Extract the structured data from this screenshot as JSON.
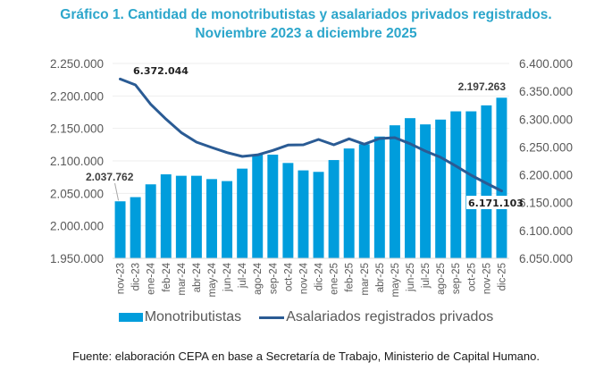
{
  "title": {
    "line1": "Gráfico 1. Cantidad de monotributistas y asalariados privados registrados.",
    "line2": "Noviembre 2023 a diciembre 2025"
  },
  "colors": {
    "title": "#2ca6cb",
    "bars": "#009ddc",
    "line": "#2a5b94",
    "grid": "#eeeeee"
  },
  "legend": {
    "bars_label": "Monotributistas",
    "line_label": "Asalariados registrados privados"
  },
  "source": "Fuente: elaboración CEPA en base a Secretaría de Trabajo, Ministerio de Capital Humano.",
  "chart_data": {
    "type": "bar+line",
    "title": "Gráfico 1. Cantidad de monotributistas y asalariados privados registrados. Noviembre 2023 a diciembre 2025",
    "xlabel": "",
    "ylabel_left": "",
    "ylabel_right": "",
    "categories": [
      "nov-23",
      "dic-23",
      "ene-24",
      "feb-24",
      "mar-24",
      "abr-24",
      "may-24",
      "jun-24",
      "jul-24",
      "ago-24",
      "sep-24",
      "oct-24",
      "nov-24",
      "dic-24",
      "ene-25",
      "feb-25",
      "mar-25",
      "abr-25",
      "may-25",
      "jun-25",
      "jul-25",
      "ago-25",
      "sep-25",
      "oct-25",
      "nov-25",
      "dic-25"
    ],
    "series": [
      {
        "name": "Monotributistas",
        "type": "bar",
        "axis": "left",
        "values": [
          2037762,
          2044200,
          2063900,
          2079300,
          2077100,
          2077100,
          2072000,
          2068900,
          2088100,
          2110000,
          2109600,
          2096800,
          2085400,
          2083100,
          2101300,
          2119100,
          2125600,
          2137500,
          2154800,
          2165800,
          2156200,
          2163600,
          2176300,
          2176300,
          2185500,
          2197263
        ]
      },
      {
        "name": "Asalariados registrados privados",
        "type": "line",
        "axis": "right",
        "values": [
          6372044,
          6361500,
          6326700,
          6300000,
          6275900,
          6258700,
          6249100,
          6240000,
          6233000,
          6235800,
          6243800,
          6253400,
          6253900,
          6263500,
          6253900,
          6264700,
          6255000,
          6265200,
          6266800,
          6255800,
          6242700,
          6231400,
          6215900,
          6199300,
          6184900,
          6171103
        ]
      }
    ],
    "y_left": {
      "range": [
        1950000,
        2250000
      ],
      "ticks": [
        "1.950.000",
        "2.000.000",
        "2.050.000",
        "2.100.000",
        "2.150.000",
        "2.200.000",
        "2.250.000"
      ]
    },
    "y_right": {
      "range": [
        6050000,
        6400000
      ],
      "ticks": [
        "6.050.000",
        "6.100.000",
        "6.150.000",
        "6.200.000",
        "6.250.000",
        "6.300.000",
        "6.350.000",
        "6.400.000"
      ]
    },
    "annotations": [
      {
        "series": "Monotributistas",
        "index": 0,
        "text": "2.037.762"
      },
      {
        "series": "Monotributistas",
        "index": 25,
        "text": "2.197.263"
      },
      {
        "series": "Asalariados registrados privados",
        "index": 0,
        "text": "6.372.044"
      },
      {
        "series": "Asalariados registrados privados",
        "index": 25,
        "text": "6.171.103"
      }
    ],
    "grid": true,
    "legend_position": "bottom"
  }
}
